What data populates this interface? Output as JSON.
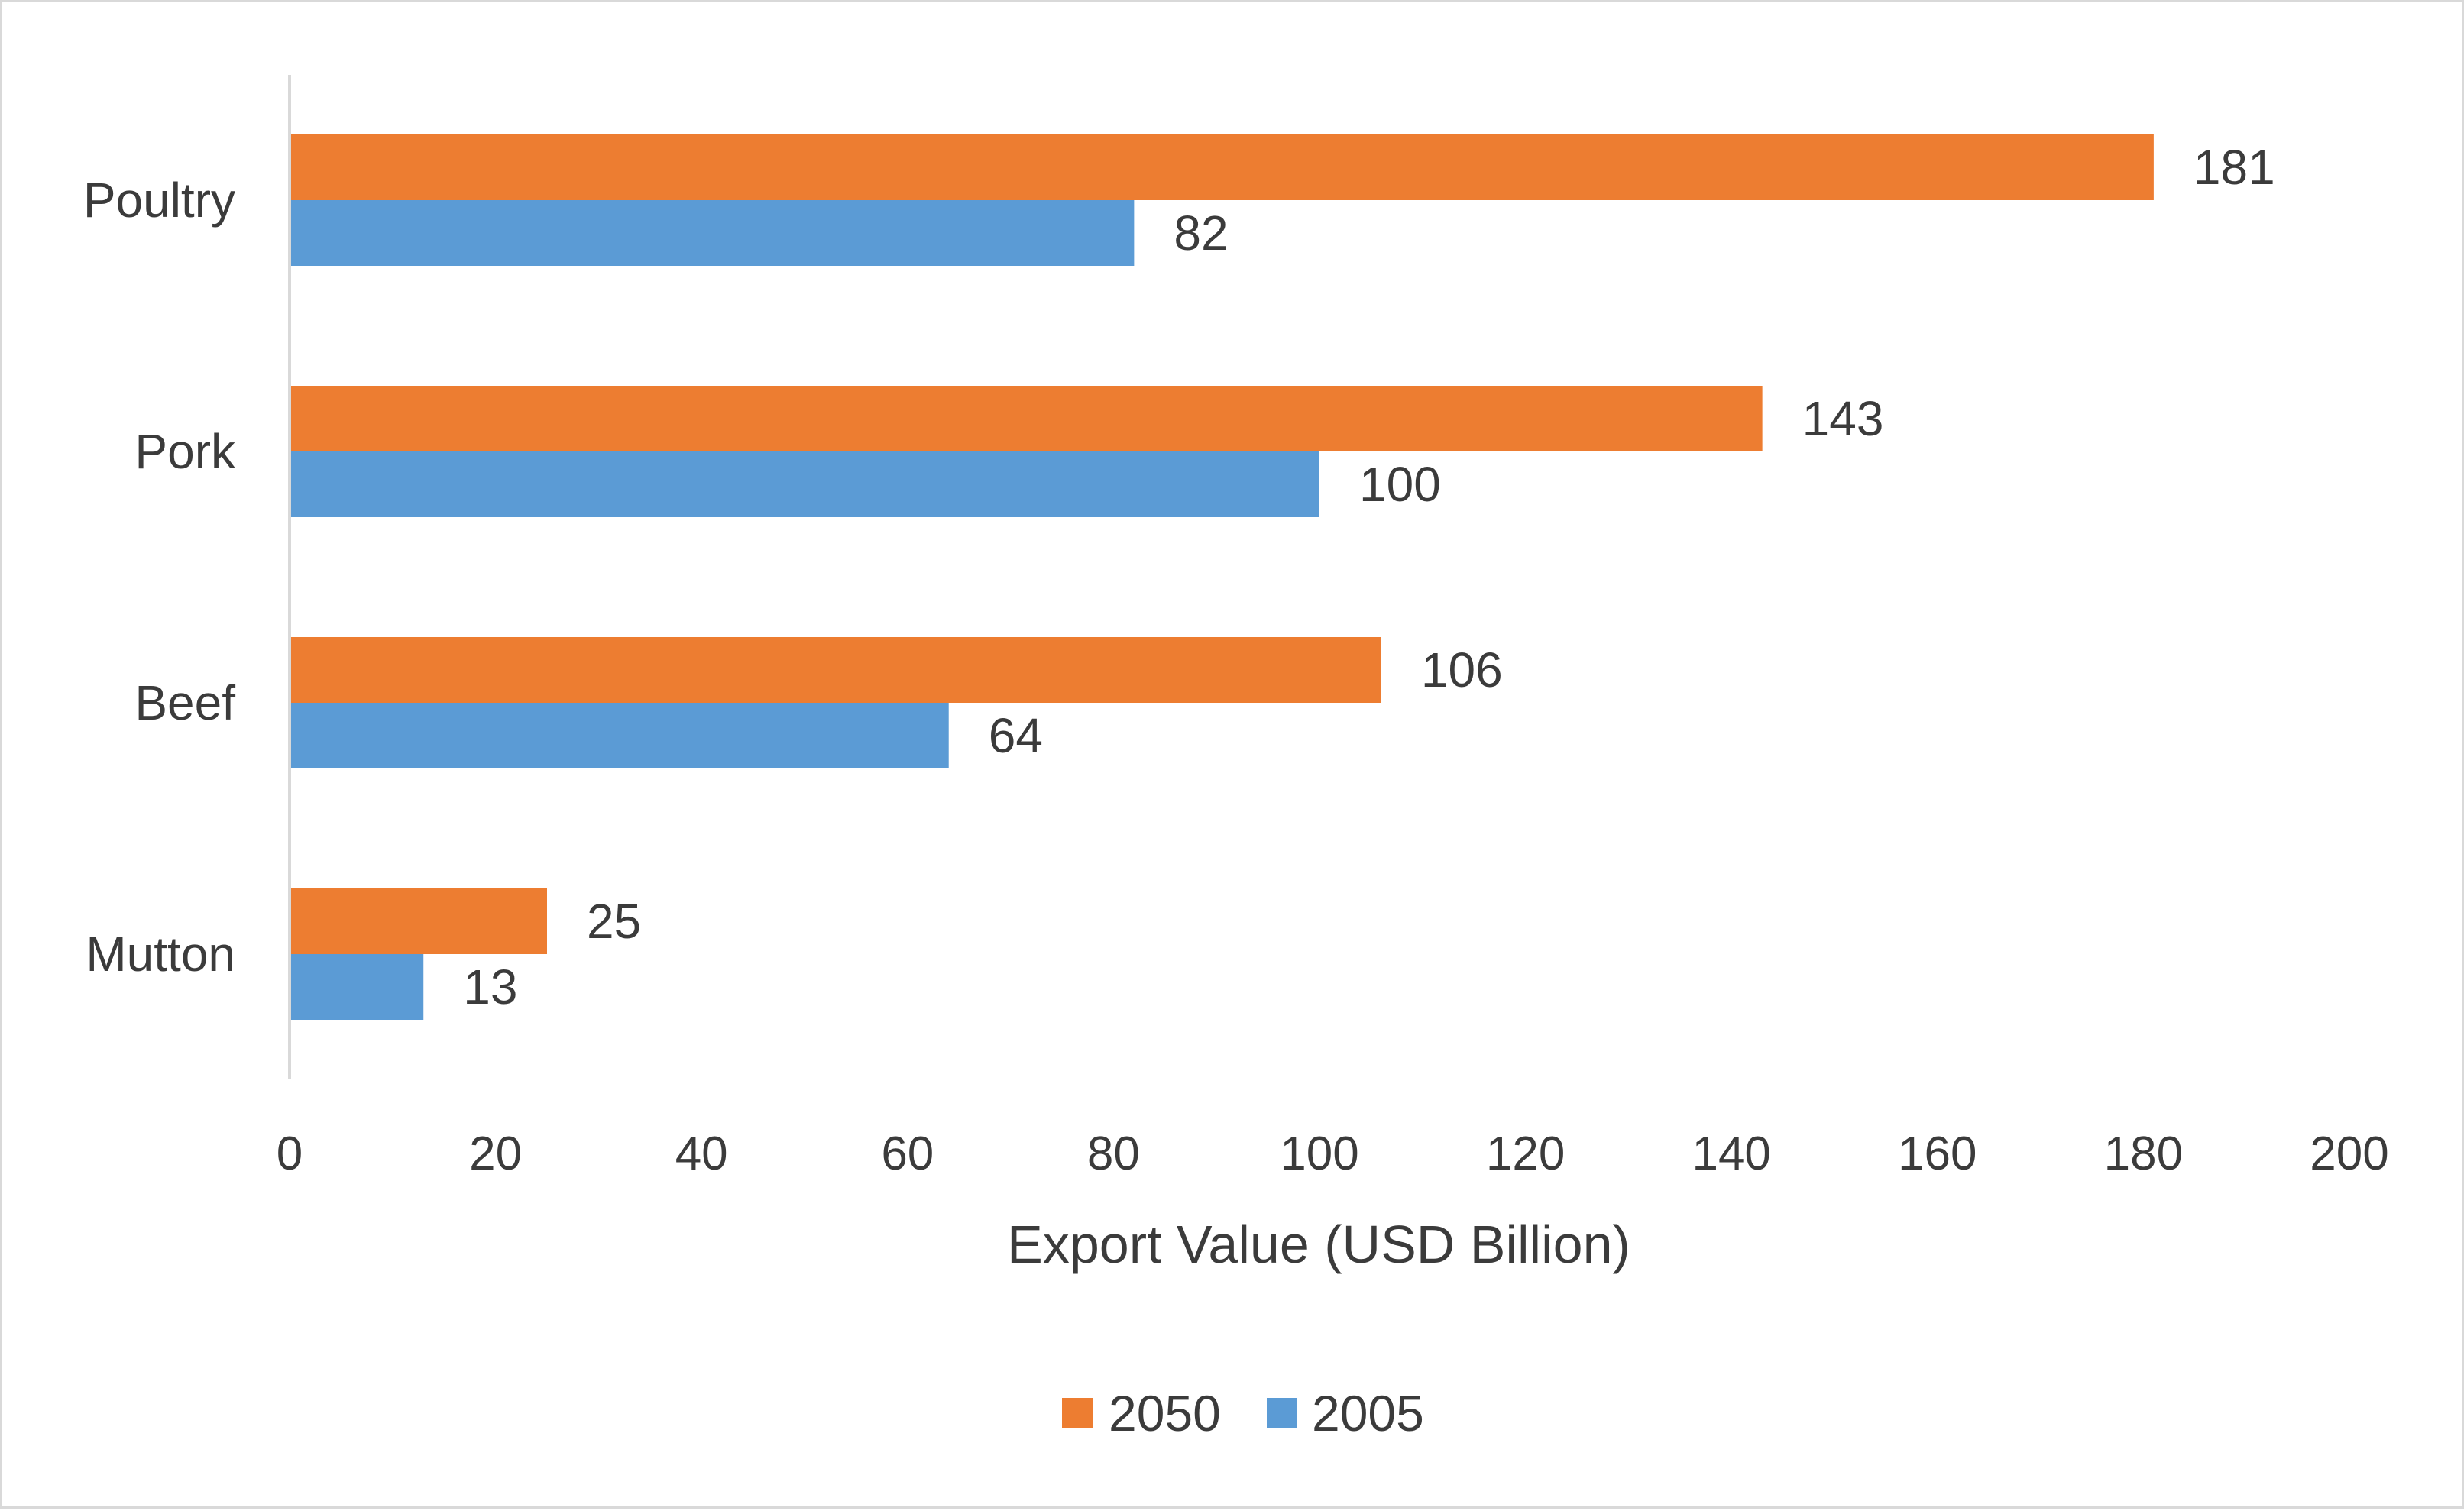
{
  "chart_data": {
    "type": "bar",
    "orientation": "horizontal",
    "categories": [
      "Poultry",
      "Pork",
      "Beef",
      "Mutton"
    ],
    "series": [
      {
        "name": "2050",
        "color": "#ed7d31",
        "values": [
          181,
          143,
          106,
          25
        ]
      },
      {
        "name": "2005",
        "color": "#5b9bd5",
        "values": [
          82,
          100,
          64,
          13
        ]
      }
    ],
    "xlabel": "Export Value (USD Billion)",
    "xlim": [
      0,
      200
    ],
    "xticks": [
      "0",
      "20",
      "40",
      "60",
      "80",
      "100",
      "120",
      "140",
      "160",
      "180",
      "200"
    ],
    "grid": false,
    "data_labels": true,
    "legend_placement": "bottom"
  }
}
